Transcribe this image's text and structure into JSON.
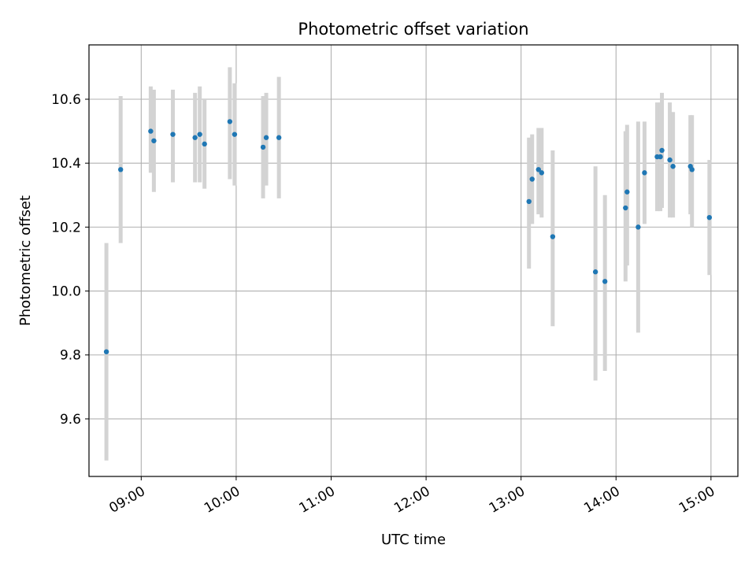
{
  "chart_data": {
    "type": "scatter",
    "title": "Photometric offset variation",
    "xlabel": "UTC time",
    "ylabel": "Photometric offset",
    "x_tick_labels": [
      "09:00",
      "10:00",
      "11:00",
      "12:00",
      "13:00",
      "14:00",
      "15:00"
    ],
    "y_tick_labels": [
      "9.6",
      "9.8",
      "10.0",
      "10.2",
      "10.4",
      "10.6"
    ],
    "xlim": [
      "08:27",
      "15:17"
    ],
    "ylim": [
      9.42,
      10.77
    ],
    "grid": true,
    "marker_color": "#1f77b4",
    "errorbar_color": "#d3d3d3",
    "points": [
      {
        "time": "08:38",
        "y": 9.81,
        "err_low": 9.47,
        "err_high": 10.15
      },
      {
        "time": "08:47",
        "y": 10.38,
        "err_low": 10.15,
        "err_high": 10.61
      },
      {
        "time": "09:06",
        "y": 10.5,
        "err_low": 10.37,
        "err_high": 10.64
      },
      {
        "time": "09:08",
        "y": 10.47,
        "err_low": 10.31,
        "err_high": 10.63
      },
      {
        "time": "09:20",
        "y": 10.49,
        "err_low": 10.34,
        "err_high": 10.63
      },
      {
        "time": "09:34",
        "y": 10.48,
        "err_low": 10.34,
        "err_high": 10.62
      },
      {
        "time": "09:37",
        "y": 10.49,
        "err_low": 10.34,
        "err_high": 10.64
      },
      {
        "time": "09:40",
        "y": 10.46,
        "err_low": 10.32,
        "err_high": 10.6
      },
      {
        "time": "09:56",
        "y": 10.53,
        "err_low": 10.35,
        "err_high": 10.7
      },
      {
        "time": "09:59",
        "y": 10.49,
        "err_low": 10.33,
        "err_high": 10.65
      },
      {
        "time": "10:17",
        "y": 10.45,
        "err_low": 10.29,
        "err_high": 10.61
      },
      {
        "time": "10:19",
        "y": 10.48,
        "err_low": 10.33,
        "err_high": 10.62
      },
      {
        "time": "10:27",
        "y": 10.48,
        "err_low": 10.29,
        "err_high": 10.67
      },
      {
        "time": "13:05",
        "y": 10.28,
        "err_low": 10.07,
        "err_high": 10.48
      },
      {
        "time": "13:07",
        "y": 10.35,
        "err_low": 10.21,
        "err_high": 10.49
      },
      {
        "time": "13:11",
        "y": 10.38,
        "err_low": 10.24,
        "err_high": 10.51
      },
      {
        "time": "13:13",
        "y": 10.37,
        "err_low": 10.23,
        "err_high": 10.51
      },
      {
        "time": "13:20",
        "y": 10.17,
        "err_low": 9.89,
        "err_high": 10.44
      },
      {
        "time": "13:47",
        "y": 10.06,
        "err_low": 9.72,
        "err_high": 10.39
      },
      {
        "time": "13:53",
        "y": 10.03,
        "err_low": 9.75,
        "err_high": 10.3
      },
      {
        "time": "14:06",
        "y": 10.26,
        "err_low": 10.03,
        "err_high": 10.5
      },
      {
        "time": "14:07",
        "y": 10.31,
        "err_low": 10.08,
        "err_high": 10.52
      },
      {
        "time": "14:14",
        "y": 10.2,
        "err_low": 9.87,
        "err_high": 10.53
      },
      {
        "time": "14:18",
        "y": 10.37,
        "err_low": 10.21,
        "err_high": 10.53
      },
      {
        "time": "14:26",
        "y": 10.42,
        "err_low": 10.25,
        "err_high": 10.59
      },
      {
        "time": "14:28",
        "y": 10.42,
        "err_low": 10.25,
        "err_high": 10.59
      },
      {
        "time": "14:29",
        "y": 10.44,
        "err_low": 10.26,
        "err_high": 10.62
      },
      {
        "time": "14:34",
        "y": 10.41,
        "err_low": 10.23,
        "err_high": 10.59
      },
      {
        "time": "14:36",
        "y": 10.39,
        "err_low": 10.23,
        "err_high": 10.56
      },
      {
        "time": "14:47",
        "y": 10.39,
        "err_low": 10.24,
        "err_high": 10.55
      },
      {
        "time": "14:48",
        "y": 10.38,
        "err_low": 10.2,
        "err_high": 10.55
      },
      {
        "time": "14:59",
        "y": 10.23,
        "err_low": 10.05,
        "err_high": 10.41
      }
    ]
  }
}
